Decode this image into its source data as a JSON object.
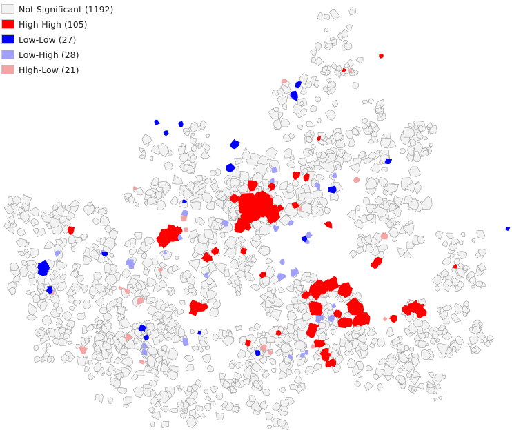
{
  "map": {
    "legend": [
      {
        "label": "Not Significant (1192)",
        "color": "#f2f2f2"
      },
      {
        "label": "High-High (105)",
        "color": "#ff0000"
      },
      {
        "label": "Low-Low (27)",
        "color": "#0000ff"
      },
      {
        "label": "Low-High (28)",
        "color": "#a0a0f8"
      },
      {
        "label": "High-Low (21)",
        "color": "#f4a4a4"
      }
    ],
    "colors": {
      "not_significant_fill": "#f3f3f3",
      "boundary": "#9a9a9a",
      "high_high": "#ff0000",
      "low_low": "#0000ff",
      "low_high": "#a0a0f8",
      "high_low": "#f4a4a4"
    }
  }
}
